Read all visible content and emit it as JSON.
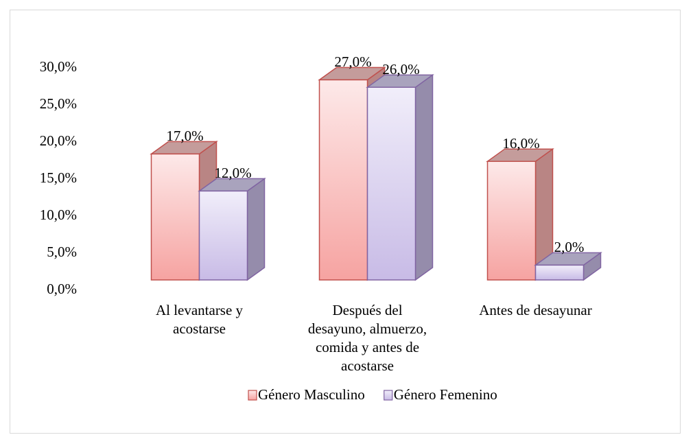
{
  "chart_data": {
    "type": "bar3d",
    "categories": [
      "Al levantarse y\nacostarse",
      "Después del\ndesayuno, almuerzo,\ncomida y antes de\nacostarse",
      "Antes de desayunar"
    ],
    "series": [
      {
        "name": "Género Masculino",
        "color": "#c0504d",
        "values": [
          17,
          27,
          16
        ],
        "value_labels": [
          "17,0%",
          "27,0%",
          "16,0%"
        ]
      },
      {
        "name": "Género Femenino",
        "color": "#8064a2",
        "values": [
          12,
          26,
          2
        ],
        "value_labels": [
          "12,0%",
          "26,0%",
          "2,0%"
        ]
      }
    ],
    "ylim": [
      0,
      30
    ],
    "yticks": [
      {
        "value": 0,
        "label": "0,0%"
      },
      {
        "value": 5,
        "label": "5,0%"
      },
      {
        "value": 10,
        "label": "10,0%"
      },
      {
        "value": 15,
        "label": "15,0%"
      },
      {
        "value": 20,
        "label": "20,0%"
      },
      {
        "value": 25,
        "label": "25,0%"
      },
      {
        "value": 30,
        "label": "30,0%"
      }
    ],
    "legend": "bottom"
  }
}
